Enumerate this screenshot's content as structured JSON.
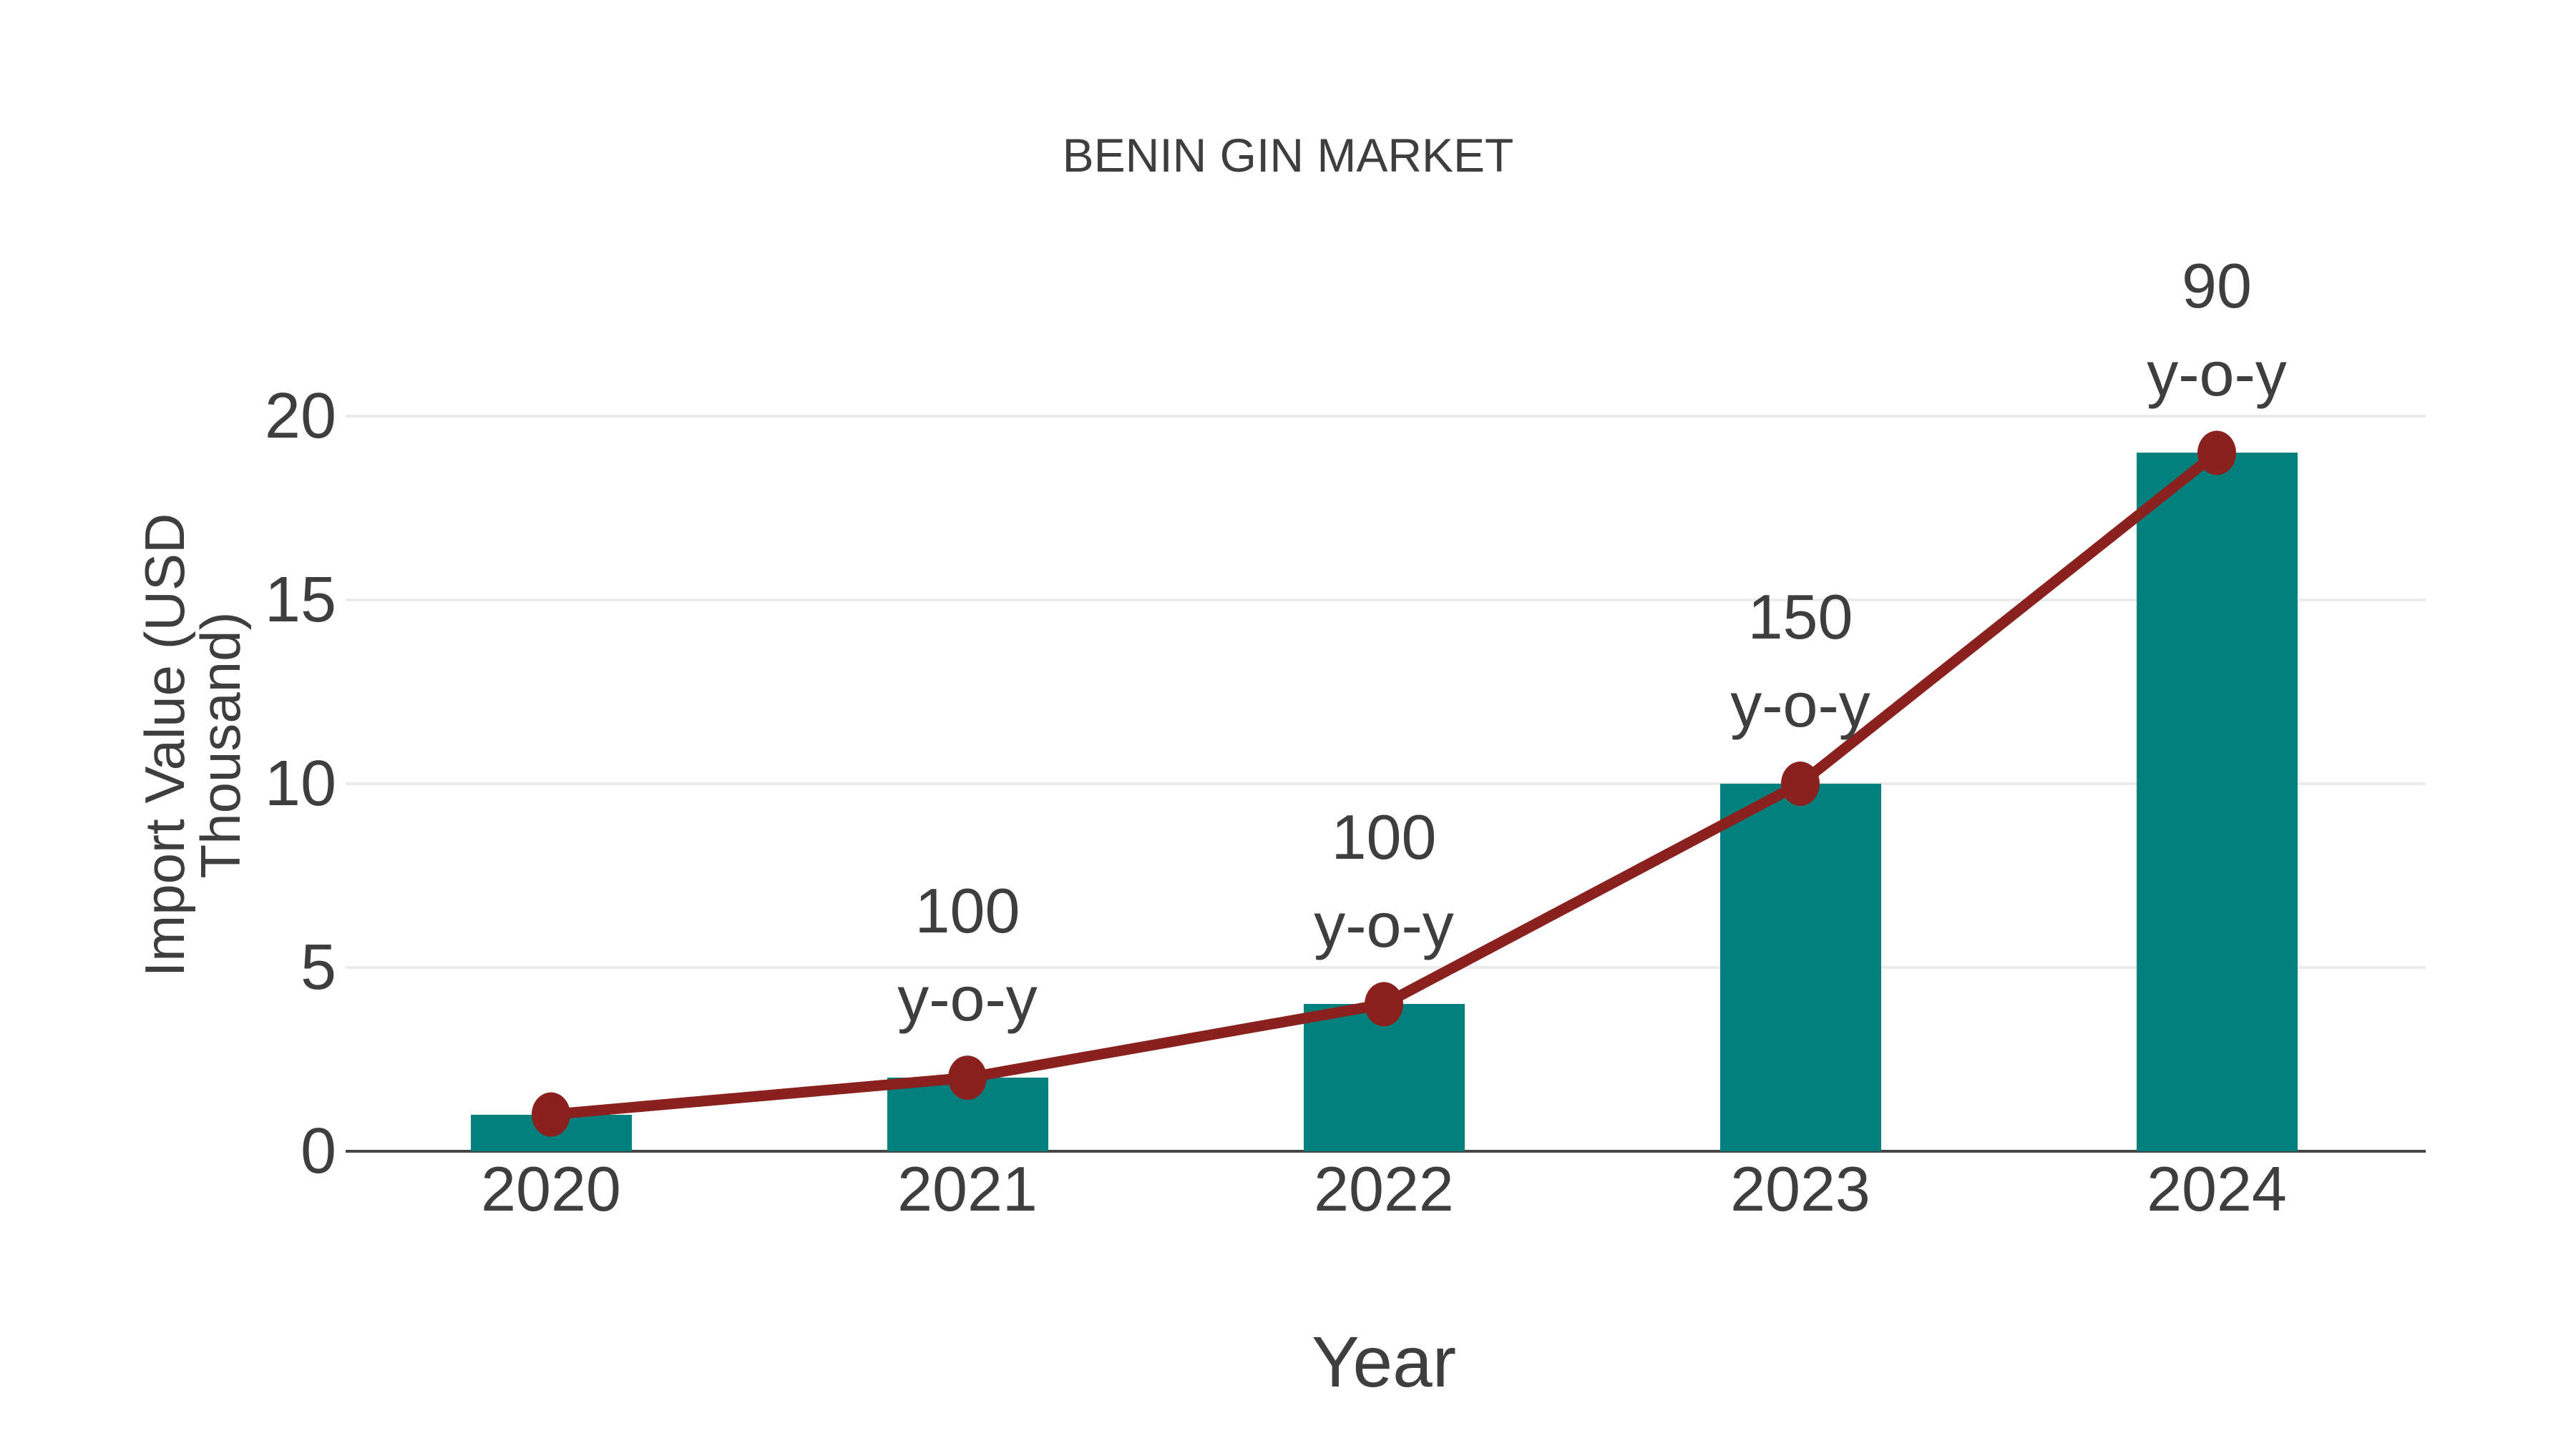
{
  "title": "BENIN GIN MARKET",
  "colors": {
    "bar": "#01807e",
    "line": "#8a211e",
    "marker": "#8a211e",
    "grid": "#ebebeb",
    "axis": "#454545",
    "text": "#3e3e3e",
    "background": "#ffffff"
  },
  "chart_data": {
    "type": "bar",
    "title": "BENIN GIN MARKET",
    "xlabel": "Year",
    "ylabel": "Import Value (USD Thousand)",
    "categories": [
      "2020",
      "2021",
      "2022",
      "2023",
      "2024"
    ],
    "series": [
      {
        "name": "Import Value (bars)",
        "type": "bar",
        "values": [
          1,
          2,
          4,
          10,
          19
        ]
      },
      {
        "name": "Import Value (trend line)",
        "type": "line",
        "values": [
          1,
          2,
          4,
          10,
          19
        ]
      }
    ],
    "yticks": [
      0,
      5,
      10,
      15,
      20
    ],
    "ylim": [
      0,
      21.5
    ],
    "grid": "horizontal",
    "legend": "none",
    "annotations": [
      {
        "category": "2021",
        "lines": [
          "100",
          "y-o-y"
        ]
      },
      {
        "category": "2022",
        "lines": [
          "100",
          "y-o-y"
        ]
      },
      {
        "category": "2023",
        "lines": [
          "150",
          "y-o-y"
        ]
      },
      {
        "category": "2024",
        "lines": [
          "90",
          "y-o-y"
        ]
      }
    ]
  }
}
